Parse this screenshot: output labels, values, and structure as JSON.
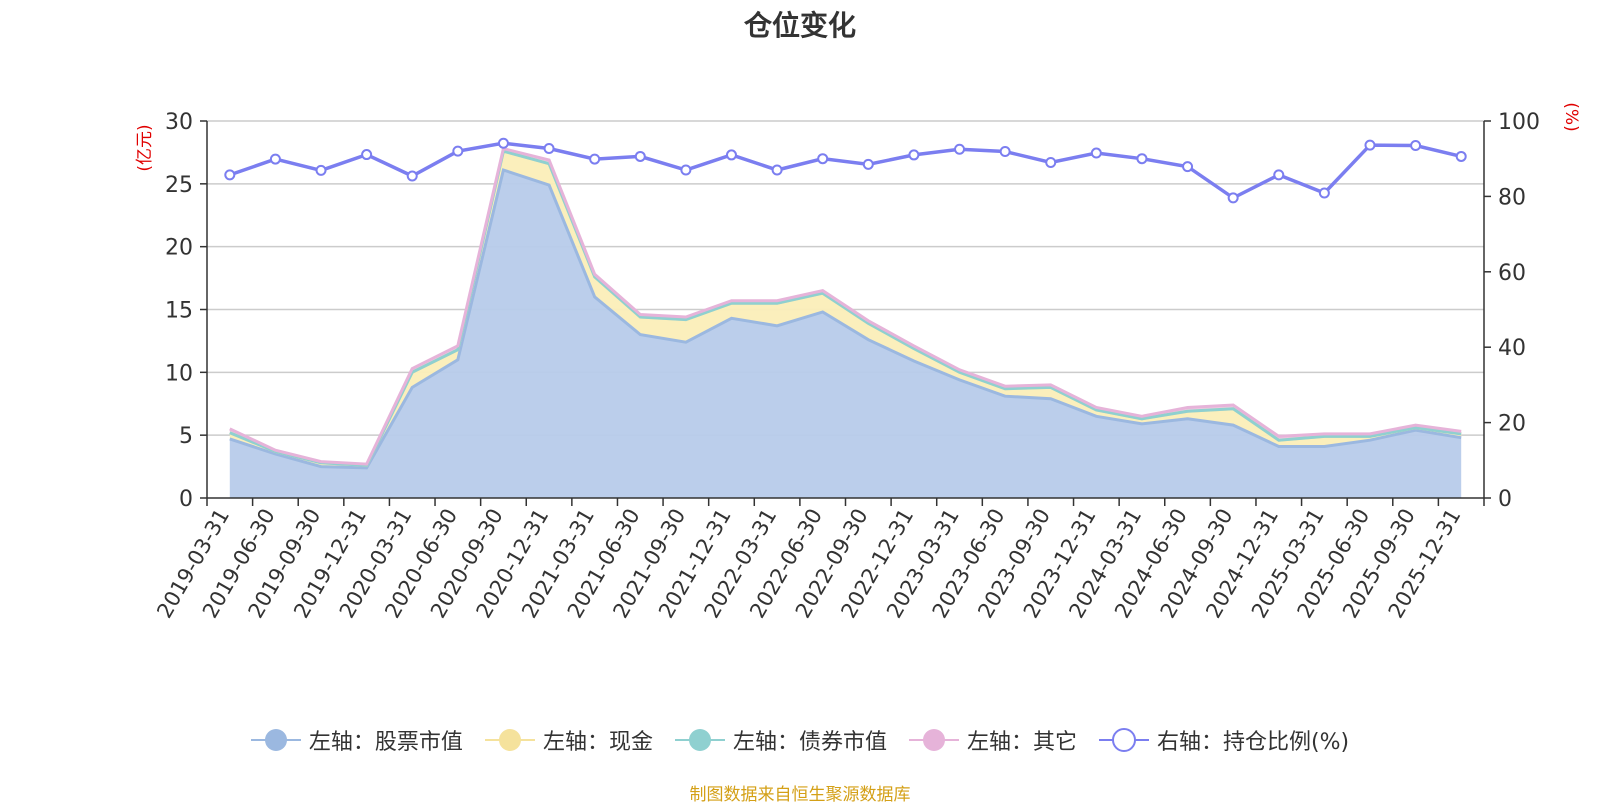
{
  "chart_data": {
    "type": "area",
    "title": "仓位变化",
    "source_text": "制图数据来自恒生聚源数据库",
    "left_axis": {
      "unit": "(亿元)",
      "ylim": [
        0,
        30
      ],
      "ticks": [
        0,
        5,
        10,
        15,
        20,
        25,
        30
      ]
    },
    "right_axis": {
      "unit": "(%)",
      "ylim": [
        0,
        100
      ],
      "ticks": [
        0,
        20,
        40,
        60,
        80,
        100
      ]
    },
    "categories": [
      "2019-03-31",
      "2019-06-30",
      "2019-09-30",
      "2019-12-31",
      "2020-03-31",
      "2020-06-30",
      "2020-09-30",
      "2020-12-31",
      "2021-03-31",
      "2021-06-30",
      "2021-09-30",
      "2021-12-31",
      "2022-03-31",
      "2022-06-30",
      "2022-09-30",
      "2022-12-31",
      "2023-03-31",
      "2023-06-30",
      "2023-09-30",
      "2023-12-31",
      "2024-03-31",
      "2024-06-30",
      "2024-09-30",
      "2024-12-31",
      "2025-03-31",
      "2025-06-30",
      "2025-09-30",
      "2025-12-31"
    ],
    "series": [
      {
        "name": "左轴：股票市值",
        "axis": "left",
        "stack": true,
        "color": "#9bb8e0",
        "fill": "#b7cbea",
        "values": [
          4.7,
          3.5,
          2.5,
          2.4,
          8.8,
          11.0,
          26.1,
          24.9,
          16.0,
          13.0,
          12.4,
          14.3,
          13.7,
          14.8,
          12.6,
          10.9,
          9.4,
          8.1,
          7.9,
          6.5,
          5.9,
          6.3,
          5.8,
          4.1,
          4.1,
          4.6,
          5.4,
          4.8
        ]
      },
      {
        "name": "左轴：现金",
        "axis": "left",
        "stack": true,
        "color": "#f5e29c",
        "fill": "#fbeeb8",
        "values": [
          0.5,
          0.2,
          0.3,
          0.2,
          1.2,
          0.8,
          1.5,
          1.7,
          1.6,
          1.4,
          1.8,
          1.2,
          1.8,
          1.5,
          1.3,
          1.0,
          0.6,
          0.6,
          0.9,
          0.5,
          0.4,
          0.6,
          1.3,
          0.5,
          0.8,
          0.3,
          0.2,
          0.3
        ]
      },
      {
        "name": "左轴：债券市值",
        "axis": "left",
        "stack": true,
        "color": "#8fd0d0",
        "fill": "#b9e3e3",
        "values": [
          0,
          0,
          0,
          0,
          0,
          0,
          0,
          0,
          0,
          0,
          0,
          0,
          0,
          0,
          0,
          0,
          0,
          0,
          0,
          0,
          0,
          0,
          0,
          0,
          0,
          0,
          0,
          0
        ]
      },
      {
        "name": "左轴：其它",
        "axis": "left",
        "stack": true,
        "color": "#e6b3d9",
        "fill": "#eec8e4",
        "values": [
          0.3,
          0.1,
          0.1,
          0.1,
          0.3,
          0.3,
          0.2,
          0.3,
          0.2,
          0.2,
          0.2,
          0.2,
          0.2,
          0.2,
          0.2,
          0.2,
          0.2,
          0.2,
          0.2,
          0.2,
          0.2,
          0.3,
          0.3,
          0.3,
          0.2,
          0.2,
          0.2,
          0.2
        ]
      },
      {
        "name": "右轴：持仓比例(%)",
        "axis": "right",
        "stack": false,
        "color": "#7b7ef0",
        "fill": "none",
        "values": [
          85.7,
          89.9,
          86.9,
          91.1,
          85.4,
          92.0,
          94.1,
          92.7,
          89.9,
          90.6,
          87.0,
          91.0,
          87.0,
          90.0,
          88.5,
          91.0,
          92.5,
          91.9,
          89.0,
          91.5,
          90.0,
          87.9,
          79.6,
          85.7,
          80.9,
          93.6,
          93.5,
          90.6
        ]
      }
    ]
  }
}
